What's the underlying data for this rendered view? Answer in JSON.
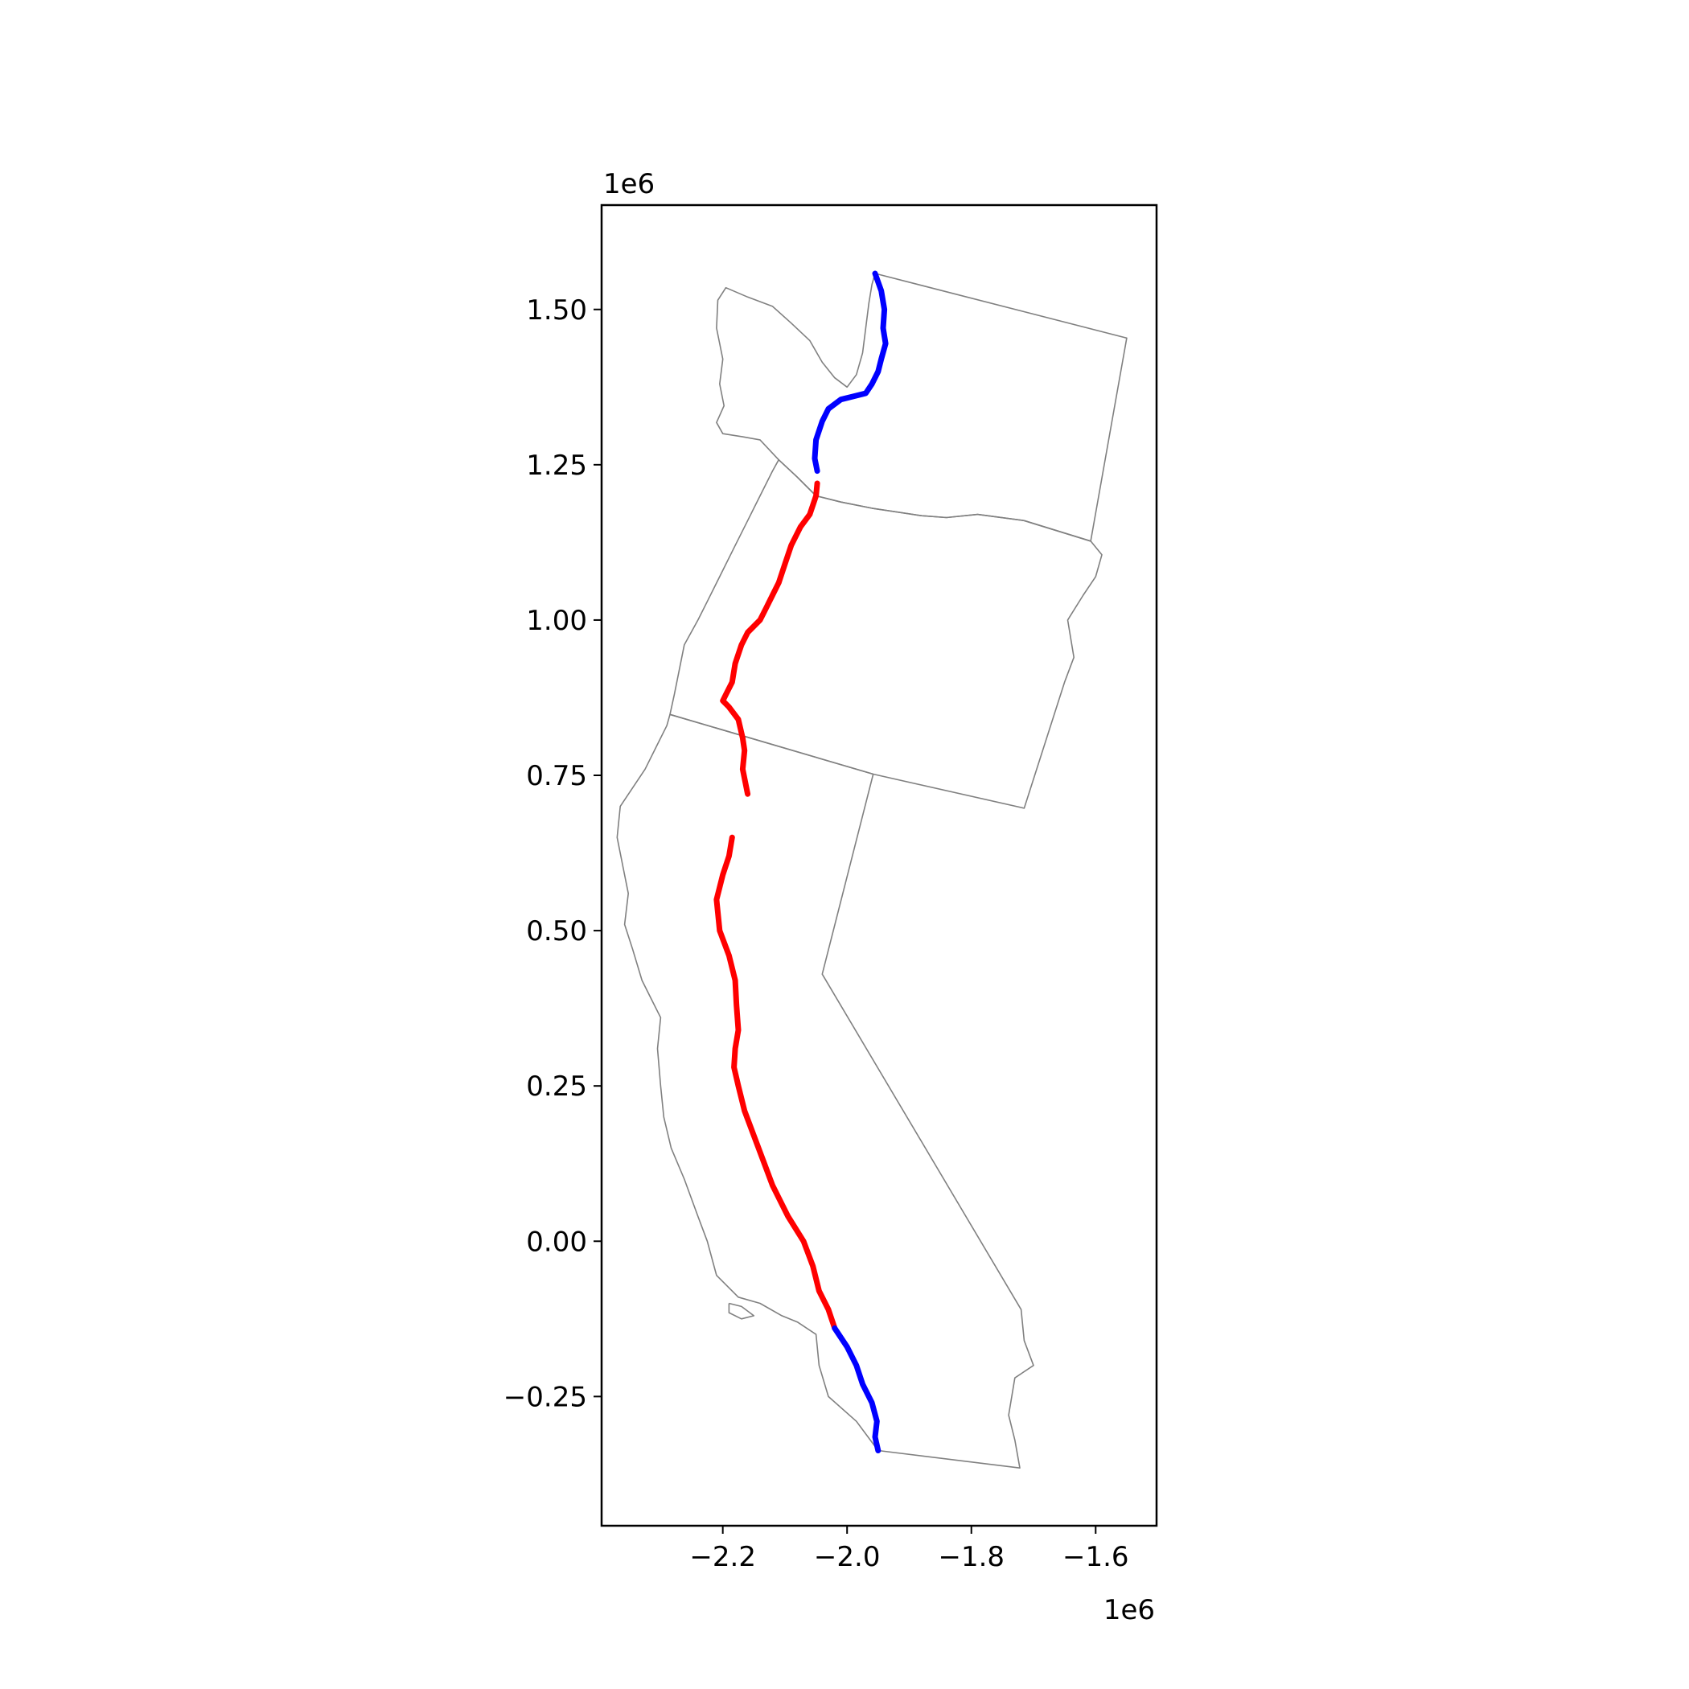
{
  "chart_data": {
    "type": "line",
    "title": "",
    "xlabel": "",
    "ylabel": "",
    "x_offset_label": "1e6",
    "y_offset_label": "1e6",
    "xlim": [
      -2.395,
      -1.502
    ],
    "ylim": [
      -0.458,
      1.668
    ],
    "x_ticks": [
      {
        "value": -2.2,
        "label": "−2.2"
      },
      {
        "value": -2.0,
        "label": "−2.0"
      },
      {
        "value": -1.8,
        "label": "−1.8"
      },
      {
        "value": -1.6,
        "label": "−1.6"
      }
    ],
    "y_ticks": [
      {
        "value": 1.5,
        "label": "1.50"
      },
      {
        "value": 1.25,
        "label": "1.25"
      },
      {
        "value": 1.0,
        "label": "1.00"
      },
      {
        "value": 0.75,
        "label": "0.75"
      },
      {
        "value": 0.5,
        "label": "0.50"
      },
      {
        "value": 0.25,
        "label": "0.25"
      },
      {
        "value": 0.0,
        "label": "0.00"
      },
      {
        "value": -0.25,
        "label": "−0.25"
      }
    ],
    "grid": false,
    "legend": "none",
    "colors": {
      "outline": "#808080",
      "segment_a": "#0000ff",
      "segment_b": "#ff0000"
    },
    "outlines": [
      {
        "name": "washington-outline",
        "points": [
          [
            -1.955,
            1.558
          ],
          [
            -1.55,
            1.454
          ],
          [
            -1.608,
            1.127
          ],
          [
            -1.715,
            1.16
          ],
          [
            -1.79,
            1.17
          ],
          [
            -1.84,
            1.165
          ],
          [
            -1.88,
            1.168
          ],
          [
            -1.96,
            1.18
          ],
          [
            -2.01,
            1.19
          ],
          [
            -2.05,
            1.2
          ],
          [
            -2.08,
            1.23
          ],
          [
            -2.11,
            1.258
          ],
          [
            -2.14,
            1.29
          ],
          [
            -2.168,
            1.295
          ],
          [
            -2.2,
            1.3
          ],
          [
            -2.21,
            1.318
          ],
          [
            -2.198,
            1.345
          ],
          [
            -2.205,
            1.38
          ],
          [
            -2.2,
            1.42
          ],
          [
            -2.21,
            1.47
          ],
          [
            -2.208,
            1.515
          ],
          [
            -2.195,
            1.535
          ],
          [
            -2.16,
            1.52
          ],
          [
            -2.12,
            1.505
          ],
          [
            -2.09,
            1.478
          ],
          [
            -2.06,
            1.45
          ],
          [
            -2.04,
            1.415
          ],
          [
            -2.02,
            1.39
          ],
          [
            -2.0,
            1.375
          ],
          [
            -1.985,
            1.395
          ],
          [
            -1.975,
            1.43
          ],
          [
            -1.97,
            1.47
          ],
          [
            -1.965,
            1.51
          ],
          [
            -1.96,
            1.54
          ],
          [
            -1.955,
            1.558
          ]
        ]
      },
      {
        "name": "oregon-outline",
        "points": [
          [
            -2.05,
            1.2
          ],
          [
            -2.01,
            1.19
          ],
          [
            -1.96,
            1.18
          ],
          [
            -1.88,
            1.168
          ],
          [
            -1.84,
            1.165
          ],
          [
            -1.79,
            1.17
          ],
          [
            -1.715,
            1.16
          ],
          [
            -1.608,
            1.127
          ],
          [
            -1.59,
            1.105
          ],
          [
            -1.6,
            1.07
          ],
          [
            -1.62,
            1.04
          ],
          [
            -1.645,
            1.0
          ],
          [
            -1.635,
            0.94
          ],
          [
            -1.65,
            0.9
          ],
          [
            -1.715,
            0.697
          ],
          [
            -1.958,
            0.752
          ],
          [
            -2.285,
            0.848
          ],
          [
            -2.278,
            0.88
          ],
          [
            -2.262,
            0.96
          ],
          [
            -2.24,
            1.0
          ],
          [
            -2.225,
            1.03
          ],
          [
            -2.2,
            1.08
          ],
          [
            -2.18,
            1.12
          ],
          [
            -2.16,
            1.16
          ],
          [
            -2.14,
            1.2
          ],
          [
            -2.12,
            1.24
          ],
          [
            -2.11,
            1.258
          ],
          [
            -2.08,
            1.23
          ],
          [
            -2.05,
            1.2
          ]
        ]
      },
      {
        "name": "california-outline",
        "points": [
          [
            -2.285,
            0.848
          ],
          [
            -1.958,
            0.752
          ],
          [
            -2.04,
            0.43
          ],
          [
            -1.72,
            -0.11
          ],
          [
            -1.715,
            -0.16
          ],
          [
            -1.7,
            -0.2
          ],
          [
            -1.73,
            -0.22
          ],
          [
            -1.74,
            -0.28
          ],
          [
            -1.73,
            -0.32
          ],
          [
            -1.722,
            -0.365
          ],
          [
            -1.95,
            -0.337
          ],
          [
            -1.985,
            -0.29
          ],
          [
            -2.03,
            -0.25
          ],
          [
            -2.045,
            -0.2
          ],
          [
            -2.05,
            -0.15
          ],
          [
            -2.08,
            -0.13
          ],
          [
            -2.105,
            -0.12
          ],
          [
            -2.14,
            -0.1
          ],
          [
            -2.175,
            -0.09
          ],
          [
            -2.21,
            -0.055
          ],
          [
            -2.225,
            0.0
          ],
          [
            -2.24,
            0.04
          ],
          [
            -2.262,
            0.1
          ],
          [
            -2.283,
            0.15
          ],
          [
            -2.295,
            0.2
          ],
          [
            -2.3,
            0.25
          ],
          [
            -2.305,
            0.31
          ],
          [
            -2.3,
            0.36
          ],
          [
            -2.315,
            0.39
          ],
          [
            -2.33,
            0.42
          ],
          [
            -2.345,
            0.47
          ],
          [
            -2.358,
            0.51
          ],
          [
            -2.352,
            0.56
          ],
          [
            -2.36,
            0.6
          ],
          [
            -2.37,
            0.65
          ],
          [
            -2.365,
            0.7
          ],
          [
            -2.325,
            0.76
          ],
          [
            -2.305,
            0.8
          ],
          [
            -2.29,
            0.83
          ],
          [
            -2.285,
            0.848
          ]
        ]
      },
      {
        "name": "channel-islands-outline",
        "points": [
          [
            -2.19,
            -0.1
          ],
          [
            -2.17,
            -0.105
          ],
          [
            -2.15,
            -0.12
          ],
          [
            -2.17,
            -0.125
          ],
          [
            -2.19,
            -0.115
          ],
          [
            -2.19,
            -0.1
          ]
        ]
      }
    ],
    "series": [
      {
        "color": "#0000ff",
        "x": [
          -1.955,
          -1.945,
          -1.94,
          -1.942,
          -1.938,
          -1.945,
          -1.95,
          -1.96,
          -1.97,
          -1.99,
          -2.01,
          -2.03,
          -2.04,
          -2.05,
          -2.052,
          -2.048
        ],
        "y": [
          1.558,
          1.53,
          1.5,
          1.47,
          1.445,
          1.42,
          1.4,
          1.38,
          1.365,
          1.36,
          1.355,
          1.34,
          1.32,
          1.29,
          1.26,
          1.24
        ]
      },
      {
        "color": "#ff0000",
        "x": [
          -2.048,
          -2.05,
          -2.06,
          -2.075,
          -2.09,
          -2.1,
          -2.11,
          -2.12,
          -2.13,
          -2.14,
          -2.16,
          -2.17,
          -2.18,
          -2.185,
          -2.195,
          -2.2,
          -2.19,
          -2.175,
          -2.168,
          -2.165,
          -2.168,
          -2.16
        ],
        "y": [
          1.22,
          1.2,
          1.17,
          1.15,
          1.12,
          1.09,
          1.06,
          1.04,
          1.02,
          1.0,
          0.98,
          0.96,
          0.93,
          0.9,
          0.88,
          0.87,
          0.86,
          0.84,
          0.81,
          0.79,
          0.76,
          0.72
        ]
      },
      {
        "color": "#ff0000",
        "x": [
          -2.185,
          -2.19,
          -2.2,
          -2.21,
          -2.205,
          -2.19,
          -2.18,
          -2.178,
          -2.175,
          -2.18,
          -2.182,
          -2.175,
          -2.165,
          -2.15,
          -2.135,
          -2.12,
          -2.095,
          -2.07,
          -2.055,
          -2.045,
          -2.03,
          -2.02
        ],
        "y": [
          0.65,
          0.62,
          0.59,
          0.55,
          0.5,
          0.46,
          0.42,
          0.38,
          0.34,
          0.31,
          0.28,
          0.25,
          0.21,
          0.17,
          0.13,
          0.09,
          0.04,
          0.0,
          -0.04,
          -0.08,
          -0.11,
          -0.14
        ]
      },
      {
        "color": "#0000ff",
        "x": [
          -2.02,
          -2.0,
          -1.985,
          -1.975,
          -1.96,
          -1.952,
          -1.955,
          -1.95
        ],
        "y": [
          -0.14,
          -0.17,
          -0.2,
          -0.23,
          -0.26,
          -0.29,
          -0.315,
          -0.337
        ]
      }
    ]
  }
}
